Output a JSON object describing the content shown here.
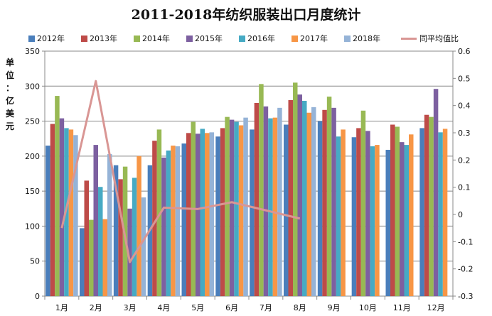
{
  "chart_data": {
    "type": "bar",
    "title": "2011-2018年纺织服装出口月度统计",
    "ylabel": "单位：亿美元",
    "ylim": [
      0,
      350
    ],
    "y2lim": [
      -0.3,
      0.6
    ],
    "yticks": [
      "0",
      "50",
      "100",
      "150",
      "200",
      "250",
      "300",
      "350"
    ],
    "y2ticks": [
      "-0.3",
      "-0.2",
      "-0.1",
      "0",
      "0.1",
      "0.2",
      "0.3",
      "0.4",
      "0.5",
      "0.6"
    ],
    "categories": [
      "1月",
      "2月",
      "3月",
      "4月",
      "5月",
      "6月",
      "7月",
      "8月",
      "9月",
      "10月",
      "11月",
      "12月"
    ],
    "legend_position": "top",
    "series": [
      {
        "name": "2012年",
        "color": "#4a7ebb",
        "values": [
          215,
          97,
          187,
          187,
          218,
          228,
          238,
          245,
          250,
          227,
          209,
          240
        ]
      },
      {
        "name": "2013年",
        "color": "#be4b48",
        "values": [
          246,
          165,
          167,
          222,
          233,
          240,
          276,
          280,
          266,
          240,
          245,
          259
        ]
      },
      {
        "name": "2014年",
        "color": "#98b954",
        "values": [
          286,
          109,
          185,
          238,
          249,
          256,
          303,
          305,
          285,
          265,
          242,
          256
        ]
      },
      {
        "name": "2015年",
        "color": "#7d60a0",
        "values": [
          254,
          216,
          125,
          198,
          232,
          252,
          271,
          288,
          269,
          236,
          220,
          296
        ]
      },
      {
        "name": "2016年",
        "color": "#46aac4",
        "values": [
          240,
          156,
          169,
          208,
          239,
          249,
          254,
          279,
          228,
          214,
          216,
          234
        ]
      },
      {
        "name": "2017年",
        "color": "#f79646",
        "values": [
          238,
          110,
          200,
          215,
          233,
          244,
          255,
          262,
          238,
          216,
          231,
          239
        ]
      },
      {
        "name": "2018年",
        "color": "#95b3d7",
        "values": [
          230,
          203,
          141,
          214,
          234,
          255,
          269,
          270,
          null,
          null,
          null,
          null
        ]
      }
    ],
    "line_series": {
      "name": "同平均值比",
      "color": "#d99694",
      "axis": "right",
      "values": [
        -0.05,
        0.49,
        -0.175,
        0.025,
        0.02,
        0.045,
        0.015,
        -0.015,
        null,
        null,
        null,
        null
      ]
    }
  }
}
